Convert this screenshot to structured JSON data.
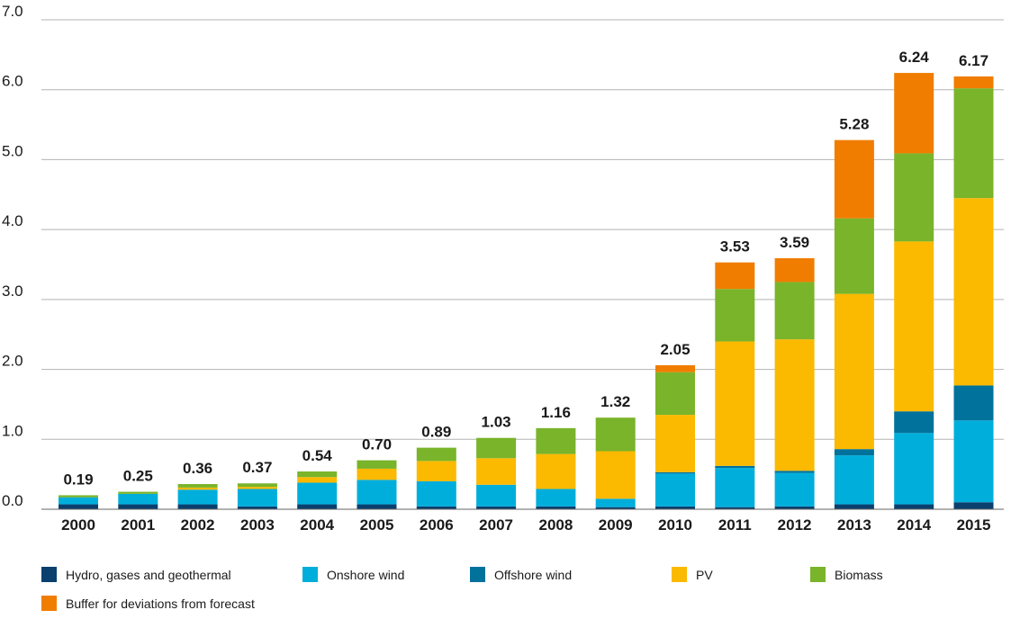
{
  "chart_data": {
    "type": "bar",
    "stacked": true,
    "title": "",
    "xlabel": "",
    "ylabel": "",
    "ylim": [
      0,
      7
    ],
    "yticks": [
      "0.0",
      "1.0",
      "2.0",
      "3.0",
      "4.0",
      "5.0",
      "6.0",
      "7.0"
    ],
    "grid": true,
    "legend_position": "bottom",
    "categories": [
      "2000",
      "2001",
      "2002",
      "2003",
      "2004",
      "2005",
      "2006",
      "2007",
      "2008",
      "2009",
      "2010",
      "2011",
      "2012",
      "2013",
      "2014",
      "2015"
    ],
    "totals": [
      "0.19",
      "0.25",
      "0.36",
      "0.37",
      "0.54",
      "0.70",
      "0.89",
      "1.03",
      "1.16",
      "1.32",
      "2.05",
      "3.53",
      "3.59",
      "5.28",
      "6.24",
      "6.17"
    ],
    "series": [
      {
        "name": "Hydro, gases and geothermal",
        "color": "#0b3f6e",
        "values": [
          0.07,
          0.07,
          0.07,
          0.04,
          0.07,
          0.07,
          0.04,
          0.04,
          0.04,
          0.03,
          0.04,
          0.03,
          0.04,
          0.07,
          0.07,
          0.1
        ]
      },
      {
        "name": "Onshore wind",
        "color": "#00aedb",
        "values": [
          0.1,
          0.15,
          0.21,
          0.25,
          0.31,
          0.35,
          0.36,
          0.31,
          0.25,
          0.12,
          0.47,
          0.56,
          0.48,
          0.7,
          1.02,
          1.17
        ]
      },
      {
        "name": "Offshore wind",
        "color": "#00729b",
        "values": [
          0,
          0,
          0,
          0,
          0,
          0,
          0,
          0,
          0,
          0,
          0.02,
          0.03,
          0.03,
          0.09,
          0.31,
          0.5
        ]
      },
      {
        "name": "PV",
        "color": "#fbb900",
        "values": [
          0,
          0,
          0.03,
          0.03,
          0.08,
          0.16,
          0.29,
          0.38,
          0.5,
          0.68,
          0.82,
          1.78,
          1.88,
          2.22,
          2.43,
          2.68
        ]
      },
      {
        "name": "Biomass",
        "color": "#79b42a",
        "values": [
          0.03,
          0.03,
          0.05,
          0.05,
          0.08,
          0.12,
          0.19,
          0.29,
          0.37,
          0.48,
          0.61,
          0.75,
          0.82,
          1.08,
          1.26,
          1.57
        ]
      },
      {
        "name": "Buffer for deviations from forecast",
        "color": "#f07d00",
        "values": [
          0,
          0,
          0,
          0,
          0,
          0,
          0,
          0,
          0,
          0,
          0.1,
          0.38,
          0.34,
          1.12,
          1.15,
          0.17
        ]
      }
    ]
  }
}
